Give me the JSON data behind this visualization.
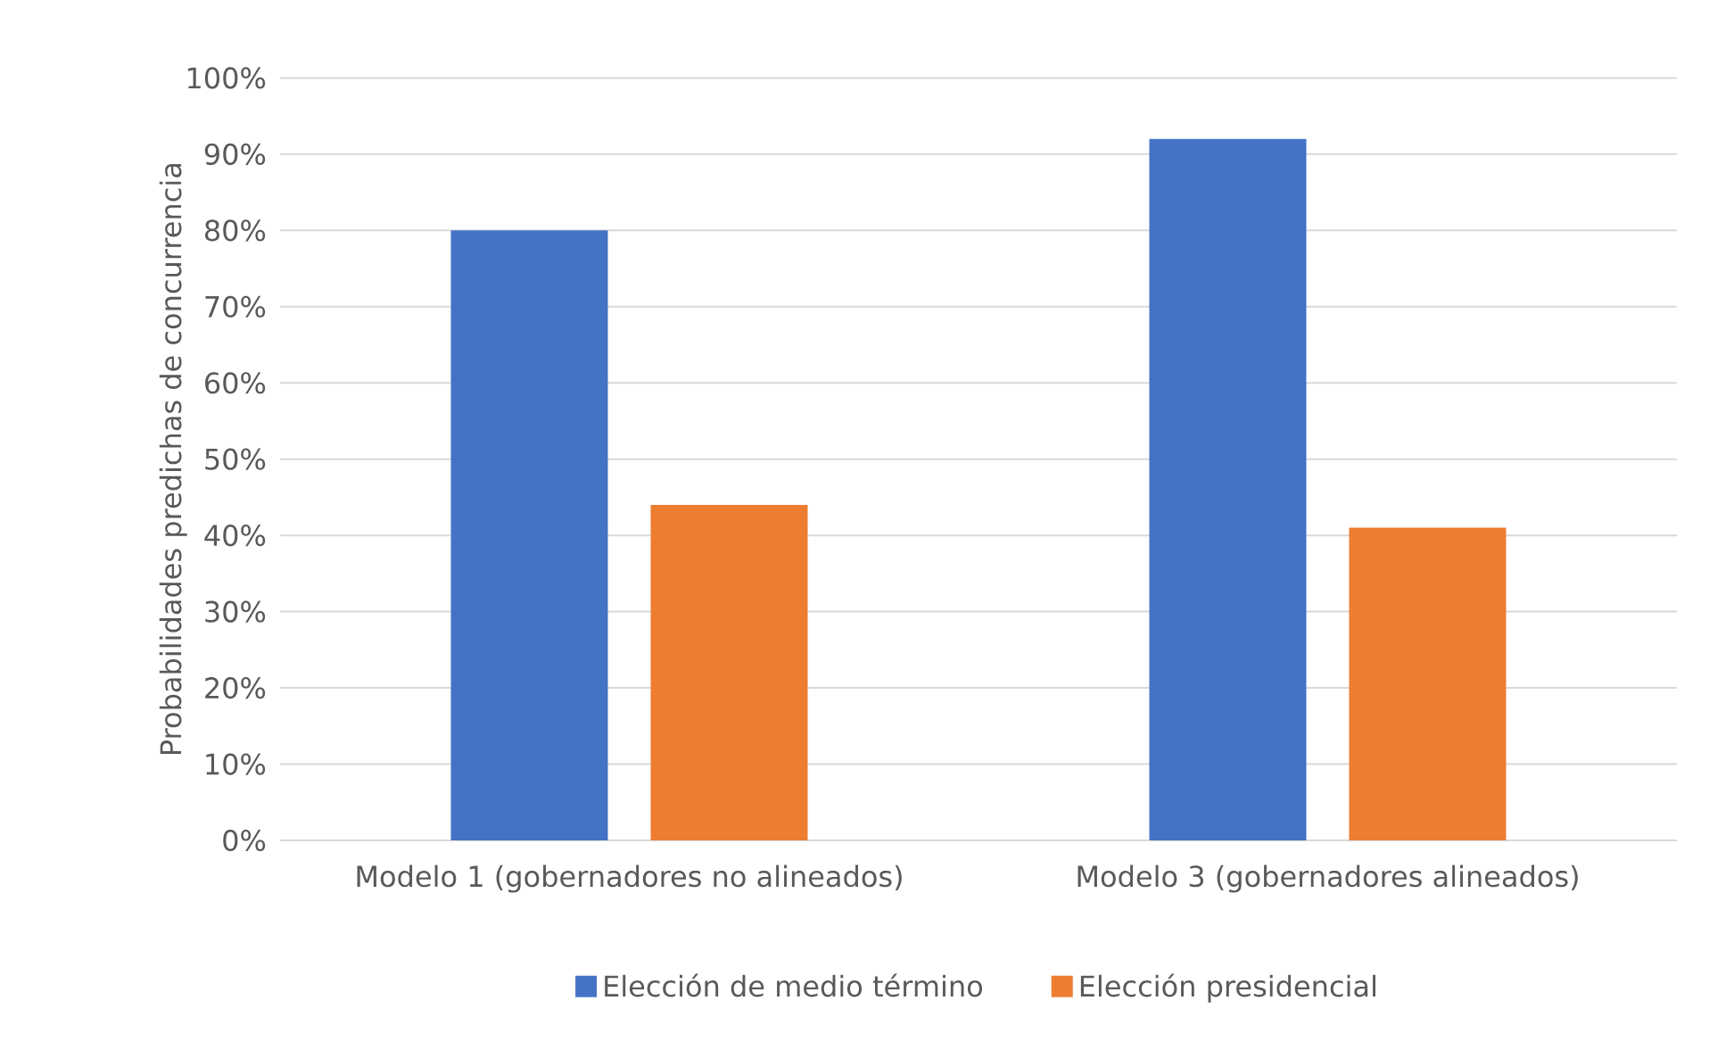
{
  "chart_data": {
    "type": "bar",
    "ylabel": "Probabilidades predichas de concurrencia",
    "categories": [
      "Modelo 1 (gobernadores no alineados)",
      "Modelo 3 (gobernadores alineados)"
    ],
    "series": [
      {
        "name": "Elección de medio término",
        "color": "#4472c4",
        "values": [
          80,
          92
        ]
      },
      {
        "name": "Elección presidencial",
        "color": "#ed7d31",
        "values": [
          44,
          41
        ]
      }
    ],
    "ylim": [
      0,
      100
    ],
    "yticks": [
      {
        "value": 0,
        "label": "0%"
      },
      {
        "value": 10,
        "label": "10%"
      },
      {
        "value": 20,
        "label": "20%"
      },
      {
        "value": 30,
        "label": "30%"
      },
      {
        "value": 40,
        "label": "40%"
      },
      {
        "value": 50,
        "label": "50%"
      },
      {
        "value": 60,
        "label": "60%"
      },
      {
        "value": 70,
        "label": "70%"
      },
      {
        "value": 80,
        "label": "80%"
      },
      {
        "value": 90,
        "label": "90%"
      },
      {
        "value": 100,
        "label": "100%"
      }
    ],
    "grid": "y",
    "legend": "bottom"
  }
}
